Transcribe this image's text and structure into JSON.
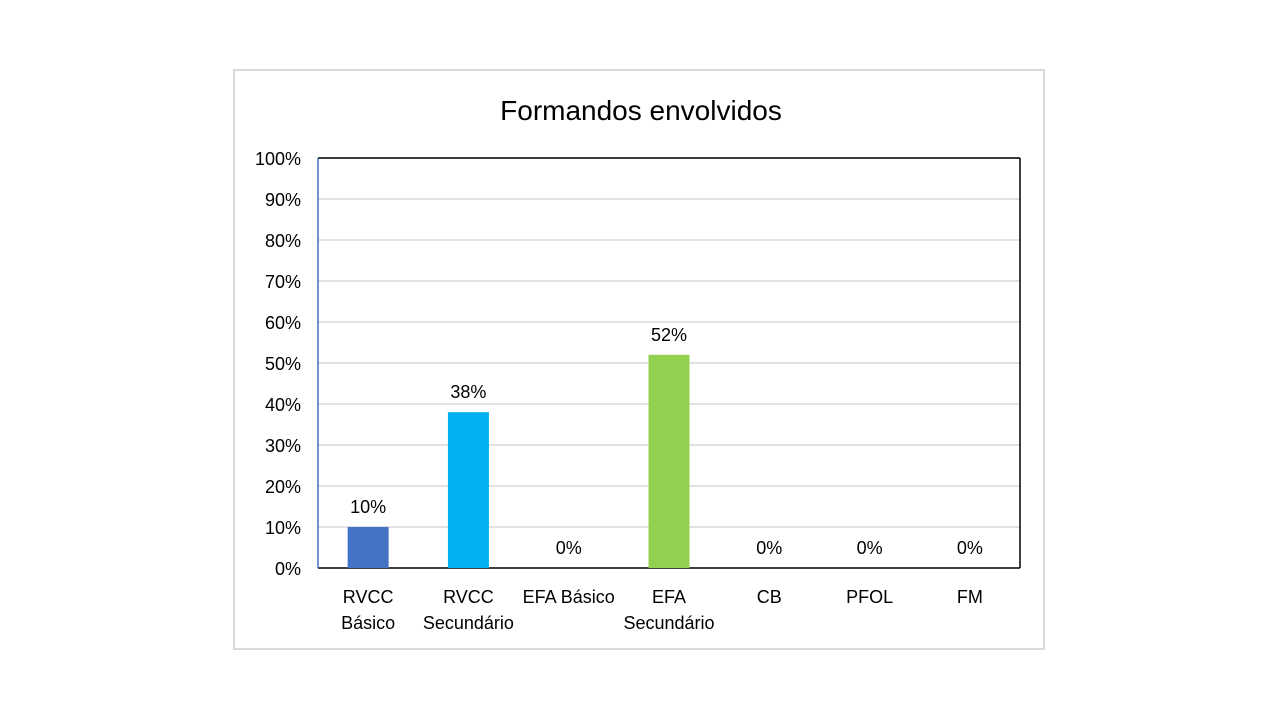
{
  "chart_data": {
    "type": "bar",
    "title": "Formandos envolvidos",
    "xlabel": "",
    "ylabel": "",
    "ylim": [
      0,
      100
    ],
    "y_ticks": [
      "0%",
      "10%",
      "20%",
      "30%",
      "40%",
      "50%",
      "60%",
      "70%",
      "80%",
      "90%",
      "100%"
    ],
    "grid": true,
    "categories": [
      [
        "RVCC",
        "Básico"
      ],
      [
        "RVCC",
        "Secundário"
      ],
      [
        "EFA Básico"
      ],
      [
        "EFA",
        "Secundário"
      ],
      [
        "CB"
      ],
      [
        "PFOL"
      ],
      [
        "FM"
      ]
    ],
    "values": [
      10,
      38,
      0,
      52,
      0,
      0,
      0
    ],
    "data_labels": [
      "10%",
      "38%",
      "0%",
      "52%",
      "0%",
      "0%",
      "0%"
    ],
    "colors": [
      "#4472c4",
      "#00b0f0",
      "#ffffff",
      "#92d050",
      "#ffffff",
      "#ffffff",
      "#ffffff"
    ]
  }
}
